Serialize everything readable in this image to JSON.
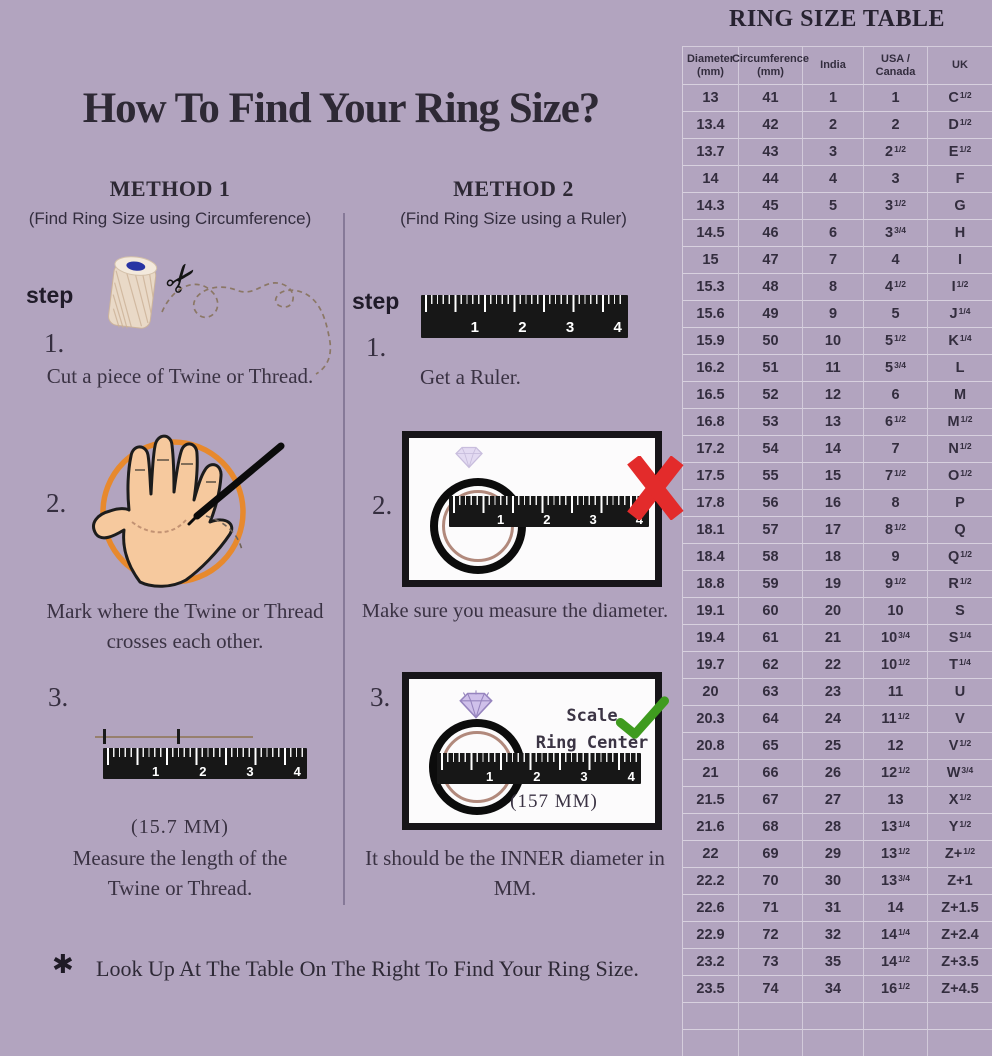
{
  "title": "How To Find Your Ring Size?",
  "footer": {
    "asterisk": "✱",
    "note": "Look Up At The Table On The Right To Find Your Ring Size."
  },
  "ruler_numbers": [
    "1",
    "2",
    "3",
    "4"
  ],
  "method1": {
    "heading": "METHOD 1",
    "subheading": "(Find Ring Size using Circumference)",
    "step_label": "step",
    "steps": [
      {
        "num": "1.",
        "caption": "Cut a piece of Twine or Thread."
      },
      {
        "num": "2.",
        "caption": "Mark where the Twine or Thread crosses each other."
      },
      {
        "num": "3.",
        "measurement": "(15.7 MM)",
        "caption": "Measure the length of the Twine or Thread."
      }
    ]
  },
  "method2": {
    "heading": "METHOD 2",
    "subheading": "(Find Ring Size using a Ruler)",
    "step_label": "step",
    "steps": [
      {
        "num": "1.",
        "caption": "Get a Ruler."
      },
      {
        "num": "2.",
        "caption": "Make sure you measure the diameter."
      },
      {
        "num": "3.",
        "caption": "It should be the INNER diameter in MM.",
        "scale_note": "Scale\nRing Center",
        "measurement": "(157 MM)"
      }
    ]
  },
  "table": {
    "title": "RING SIZE TABLE",
    "headers": [
      "Diameter (mm)",
      "Circumference (mm)",
      "India",
      "USA / Canada",
      "UK"
    ],
    "rows": [
      {
        "dia": "13",
        "cir": "41",
        "ind": "1",
        "usa": "1",
        "usa_sup": "",
        "uk": "C",
        "uk_sup": "1/2"
      },
      {
        "dia": "13.4",
        "cir": "42",
        "ind": "2",
        "usa": "2",
        "usa_sup": "",
        "uk": "D",
        "uk_sup": "1/2"
      },
      {
        "dia": "13.7",
        "cir": "43",
        "ind": "3",
        "usa": "2",
        "usa_sup": "1/2",
        "uk": "E",
        "uk_sup": "1/2"
      },
      {
        "dia": "14",
        "cir": "44",
        "ind": "4",
        "usa": "3",
        "usa_sup": "",
        "uk": "F",
        "uk_sup": ""
      },
      {
        "dia": "14.3",
        "cir": "45",
        "ind": "5",
        "usa": "3",
        "usa_sup": "1/2",
        "uk": "G",
        "uk_sup": ""
      },
      {
        "dia": "14.5",
        "cir": "46",
        "ind": "6",
        "usa": "3",
        "usa_sup": "3/4",
        "uk": "H",
        "uk_sup": ""
      },
      {
        "dia": "15",
        "cir": "47",
        "ind": "7",
        "usa": "4",
        "usa_sup": "",
        "uk": "I",
        "uk_sup": ""
      },
      {
        "dia": "15.3",
        "cir": "48",
        "ind": "8",
        "usa": "4",
        "usa_sup": "1/2",
        "uk": "I",
        "uk_sup": "1/2"
      },
      {
        "dia": "15.6",
        "cir": "49",
        "ind": "9",
        "usa": "5",
        "usa_sup": "",
        "uk": "J",
        "uk_sup": "1/4"
      },
      {
        "dia": "15.9",
        "cir": "50",
        "ind": "10",
        "usa": "5",
        "usa_sup": "1/2",
        "uk": "K",
        "uk_sup": "1/4"
      },
      {
        "dia": "16.2",
        "cir": "51",
        "ind": "11",
        "usa": "5",
        "usa_sup": "3/4",
        "uk": "L",
        "uk_sup": ""
      },
      {
        "dia": "16.5",
        "cir": "52",
        "ind": "12",
        "usa": "6",
        "usa_sup": "",
        "uk": "M",
        "uk_sup": ""
      },
      {
        "dia": "16.8",
        "cir": "53",
        "ind": "13",
        "usa": "6",
        "usa_sup": "1/2",
        "uk": "M",
        "uk_sup": "1/2"
      },
      {
        "dia": "17.2",
        "cir": "54",
        "ind": "14",
        "usa": "7",
        "usa_sup": "",
        "uk": "N",
        "uk_sup": "1/2"
      },
      {
        "dia": "17.5",
        "cir": "55",
        "ind": "15",
        "usa": "7",
        "usa_sup": "1/2",
        "uk": "O",
        "uk_sup": "1/2"
      },
      {
        "dia": "17.8",
        "cir": "56",
        "ind": "16",
        "usa": "8",
        "usa_sup": "",
        "uk": "P",
        "uk_sup": ""
      },
      {
        "dia": "18.1",
        "cir": "57",
        "ind": "17",
        "usa": "8",
        "usa_sup": "1/2",
        "uk": "Q",
        "uk_sup": ""
      },
      {
        "dia": "18.4",
        "cir": "58",
        "ind": "18",
        "usa": "9",
        "usa_sup": "",
        "uk": "Q",
        "uk_sup": "1/2"
      },
      {
        "dia": "18.8",
        "cir": "59",
        "ind": "19",
        "usa": "9",
        "usa_sup": "1/2",
        "uk": "R",
        "uk_sup": "1/2"
      },
      {
        "dia": "19.1",
        "cir": "60",
        "ind": "20",
        "usa": "10",
        "usa_sup": "",
        "uk": "S",
        "uk_sup": ""
      },
      {
        "dia": "19.4",
        "cir": "61",
        "ind": "21",
        "usa": "10",
        "usa_sup": "3/4",
        "uk": "S",
        "uk_sup": "1/4"
      },
      {
        "dia": "19.7",
        "cir": "62",
        "ind": "22",
        "usa": "10",
        "usa_sup": "1/2",
        "uk": "T",
        "uk_sup": "1/4"
      },
      {
        "dia": "20",
        "cir": "63",
        "ind": "23",
        "usa": "11",
        "usa_sup": "",
        "uk": "U",
        "uk_sup": ""
      },
      {
        "dia": "20.3",
        "cir": "64",
        "ind": "24",
        "usa": "11",
        "usa_sup": "1/2",
        "uk": "V",
        "uk_sup": ""
      },
      {
        "dia": "20.8",
        "cir": "65",
        "ind": "25",
        "usa": "12",
        "usa_sup": "",
        "uk": "V",
        "uk_sup": "1/2"
      },
      {
        "dia": "21",
        "cir": "66",
        "ind": "26",
        "usa": "12",
        "usa_sup": "1/2",
        "uk": "W",
        "uk_sup": "3/4"
      },
      {
        "dia": "21.5",
        "cir": "67",
        "ind": "27",
        "usa": "13",
        "usa_sup": "",
        "uk": "X",
        "uk_sup": "1/2"
      },
      {
        "dia": "21.6",
        "cir": "68",
        "ind": "28",
        "usa": "13",
        "usa_sup": "1/4",
        "uk": "Y",
        "uk_sup": "1/2"
      },
      {
        "dia": "22",
        "cir": "69",
        "ind": "29",
        "usa": "13",
        "usa_sup": "1/2",
        "uk": "Z+",
        "uk_sup": "1/2"
      },
      {
        "dia": "22.2",
        "cir": "70",
        "ind": "30",
        "usa": "13",
        "usa_sup": "3/4",
        "uk": "Z+1",
        "uk_sup": ""
      },
      {
        "dia": "22.6",
        "cir": "71",
        "ind": "31",
        "usa": "14",
        "usa_sup": "",
        "uk": "Z+1.5",
        "uk_sup": ""
      },
      {
        "dia": "22.9",
        "cir": "72",
        "ind": "32",
        "usa": "14",
        "usa_sup": "1/4",
        "uk": "Z+2.4",
        "uk_sup": ""
      },
      {
        "dia": "23.2",
        "cir": "73",
        "ind": "35",
        "usa": "14",
        "usa_sup": "1/2",
        "uk": "Z+3.5",
        "uk_sup": ""
      },
      {
        "dia": "23.5",
        "cir": "74",
        "ind": "34",
        "usa": "16",
        "usa_sup": "1/2",
        "uk": "Z+4.5",
        "uk_sup": ""
      }
    ]
  },
  "colors": {
    "background": "#b2a4bf",
    "accent_orange": "#e7892d",
    "x_red": "#e32b2b",
    "check_green": "#3f9b1f",
    "ring_rose": "#b1897c",
    "diamond_purple": "#cfc0ea"
  }
}
